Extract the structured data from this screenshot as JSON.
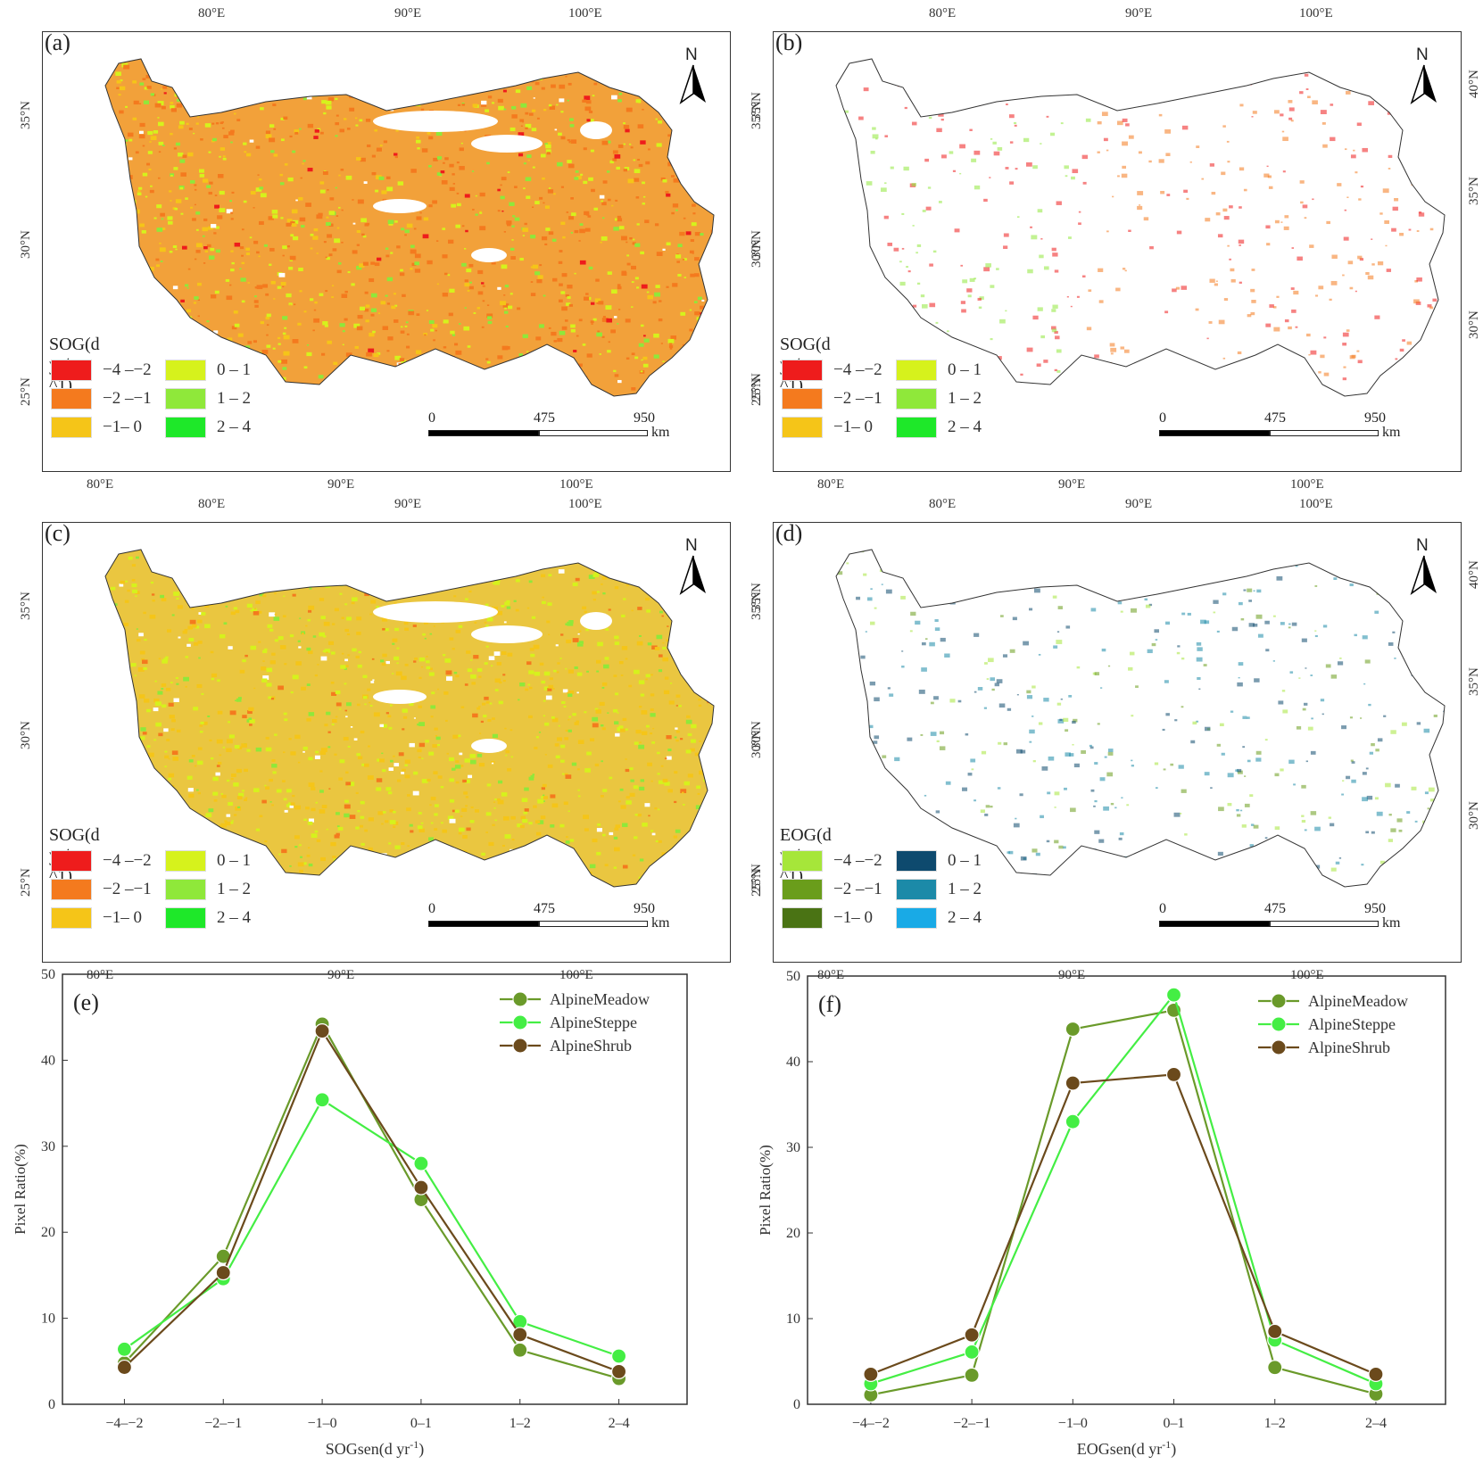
{
  "maps": [
    {
      "id": "a",
      "label": "(a)",
      "legend_title": "SOG(d yr^-^1)",
      "palette": "sog",
      "pattern": "a"
    },
    {
      "id": "b",
      "label": "(b)",
      "legend_title": "SOG(d yr^-^1)",
      "palette": "sog",
      "pattern": "b"
    },
    {
      "id": "c",
      "label": "(c)",
      "legend_title": "SOG(d yr^-^1)",
      "palette": "sog",
      "pattern": "c"
    },
    {
      "id": "d",
      "label": "(d)",
      "legend_title": "EOG(d yr^-^1)",
      "palette": "eog",
      "pattern": "d"
    }
  ],
  "legend_classes": [
    "−4 –−2",
    "−2 –−1",
    "−1– 0",
    "0 – 1",
    "1 – 2",
    "2 – 4"
  ],
  "palettes": {
    "sog": [
      "#ee1c1c",
      "#f47a1e",
      "#f5c518",
      "#d6f21c",
      "#8fe83a",
      "#1ee829"
    ],
    "eog": [
      "#a6e63a",
      "#6a9d1b",
      "#4a7314",
      "#0e4a6e",
      "#1c8aa8",
      "#19aae6"
    ]
  },
  "axis_labels": {
    "lon_top": [
      "80°E",
      "90°E",
      "100°E"
    ],
    "lon_bottom": [
      "80°E",
      "90°E",
      "100°E"
    ],
    "lat_left": [
      "35°N",
      "30°N",
      "25°N"
    ],
    "lat_right_b": [
      "40°N",
      "35°N",
      "30°N"
    ],
    "lat_right_d": [
      "40°N",
      "35°N",
      "30°N"
    ]
  },
  "scale_bar": {
    "ticks": [
      "0",
      "475",
      "950"
    ],
    "unit": "km"
  },
  "north_label": "N",
  "chart_data": [
    {
      "type": "line",
      "panel_label": "(e)",
      "categories": [
        "−4–−2",
        "−2–−1",
        "−1–0",
        "0–1",
        "1–2",
        "2–4"
      ],
      "series": [
        {
          "name": "AlpineMeadow",
          "color": "#6a9a2a",
          "values": [
            4.8,
            17.2,
            44.2,
            23.8,
            6.3,
            3.0
          ]
        },
        {
          "name": "AlpineSteppe",
          "color": "#44ee44",
          "values": [
            6.4,
            14.6,
            35.4,
            28.0,
            9.6,
            5.6
          ]
        },
        {
          "name": "AlpineShrub",
          "color": "#6b4a1c",
          "values": [
            4.3,
            15.3,
            43.4,
            25.2,
            8.1,
            3.8
          ]
        }
      ],
      "xlabel": "SOGsen(d yr",
      "xlabel_sup": "-1",
      "xlabel_end": ")",
      "ylabel": "Pixel Ratio(%)",
      "ylim": [
        0,
        50
      ],
      "yticks": [
        0,
        10,
        20,
        30,
        40,
        50
      ],
      "legend": "top-right",
      "grid": false
    },
    {
      "type": "line",
      "panel_label": "(f)",
      "categories": [
        "−4–−2",
        "−2–−1",
        "−1–0",
        "0–1",
        "1–2",
        "2–4"
      ],
      "series": [
        {
          "name": "AlpineMeadow",
          "color": "#6a9a2a",
          "values": [
            1.1,
            3.4,
            43.8,
            46.0,
            4.3,
            1.2
          ]
        },
        {
          "name": "AlpineSteppe",
          "color": "#44ee44",
          "values": [
            2.4,
            6.1,
            33.0,
            47.8,
            7.5,
            2.4
          ]
        },
        {
          "name": "AlpineShrub",
          "color": "#6b4a1c",
          "values": [
            3.5,
            8.1,
            37.5,
            38.5,
            8.5,
            3.5
          ]
        }
      ],
      "xlabel": "EOGsen(d yr",
      "xlabel_sup": "-1",
      "xlabel_end": ")",
      "ylabel": "Pixel Ratio(%)",
      "ylim": [
        0,
        50
      ],
      "yticks": [
        0,
        10,
        20,
        30,
        40,
        50
      ],
      "legend": "top-right",
      "grid": false
    }
  ]
}
